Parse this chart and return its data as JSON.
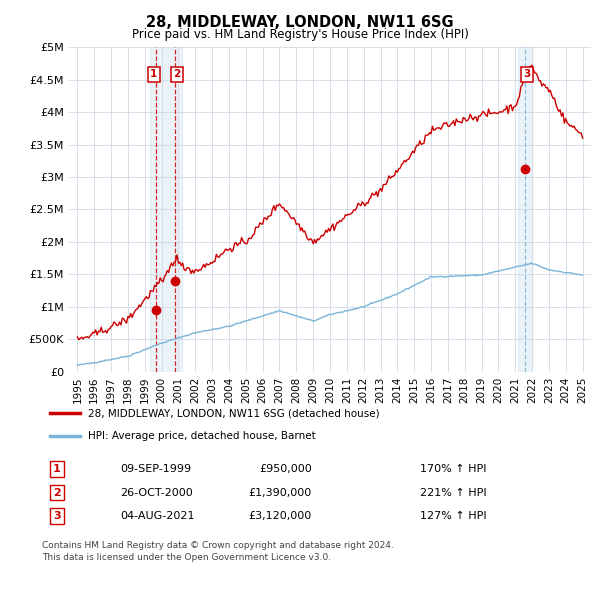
{
  "title": "28, MIDDLEWAY, LONDON, NW11 6SG",
  "subtitle": "Price paid vs. HM Land Registry's House Price Index (HPI)",
  "hpi_color": "#7ab4d8",
  "hpi_fill_color": "#ddeef8",
  "price_color": "#cc0000",
  "annotation_color": "#cc0000",
  "vline_color": "#cc0000",
  "vline3_color": "#7ab4d8",
  "vline3_fill": "#ddeef8",
  "ylim_min": 0,
  "ylim_max": 5000000,
  "yticks": [
    0,
    500000,
    1000000,
    1500000,
    2000000,
    2500000,
    3000000,
    3500000,
    4000000,
    4500000,
    5000000
  ],
  "ytick_labels": [
    "£0",
    "£500K",
    "£1M",
    "£1.5M",
    "£2M",
    "£2.5M",
    "£3M",
    "£3.5M",
    "£4M",
    "£4.5M",
    "£5M"
  ],
  "xlim_min": 1994.5,
  "xlim_max": 2025.5,
  "sales": [
    {
      "label": "1",
      "year": 1999.69,
      "price": 950000,
      "date": "09-SEP-1999",
      "pct": "170%",
      "direction": "↑"
    },
    {
      "label": "2",
      "year": 2000.82,
      "price": 1390000,
      "date": "26-OCT-2000",
      "pct": "221%",
      "direction": "↑"
    },
    {
      "label": "3",
      "year": 2021.59,
      "price": 3120000,
      "date": "04-AUG-2021",
      "pct": "127%",
      "direction": "↑"
    }
  ],
  "legend_line1": "28, MIDDLEWAY, LONDON, NW11 6SG (detached house)",
  "legend_line2": "HPI: Average price, detached house, Barnet",
  "footnote1": "Contains HM Land Registry data © Crown copyright and database right 2024.",
  "footnote2": "This data is licensed under the Open Government Licence v3.0."
}
